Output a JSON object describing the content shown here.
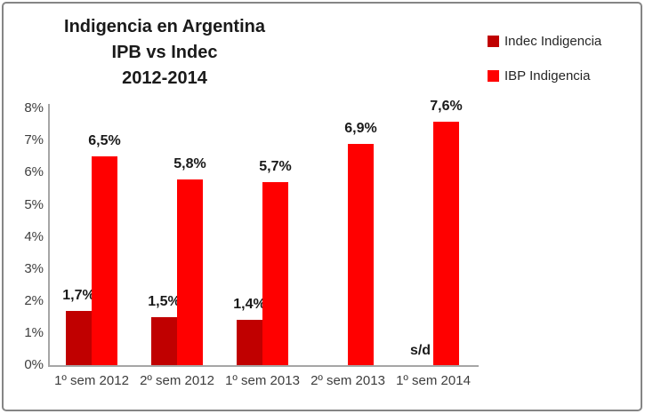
{
  "chart_data": {
    "type": "bar",
    "title_lines": [
      "Indigencia en Argentina",
      "IPB vs Indec",
      "2012-2014"
    ],
    "categories": [
      "1º sem 2012",
      "2º sem 2012",
      "1º sem 2013",
      "2º sem 2013",
      "1º sem 2014"
    ],
    "series": [
      {
        "name": "Indec Indigencia",
        "color": "#c00000",
        "values": [
          1.7,
          1.5,
          1.4,
          null,
          null
        ],
        "labels": [
          "1,7%",
          "1,5%",
          "1,4%",
          "",
          "s/d"
        ]
      },
      {
        "name": "IBP Indigencia",
        "color": "#ff0000",
        "values": [
          6.5,
          5.8,
          5.7,
          6.9,
          7.6
        ],
        "labels": [
          "6,5%",
          "5,8%",
          "5,7%",
          "6,9%",
          "7,6%"
        ]
      }
    ],
    "y_ticks": [
      "8%",
      "7%",
      "6%",
      "5%",
      "4%",
      "3%",
      "2%",
      "1%",
      "0%"
    ],
    "ylim": [
      0,
      8
    ],
    "xlabel": "",
    "ylabel": "",
    "grid": false,
    "legend_position": "top-right",
    "no_data_label": "s/d"
  }
}
